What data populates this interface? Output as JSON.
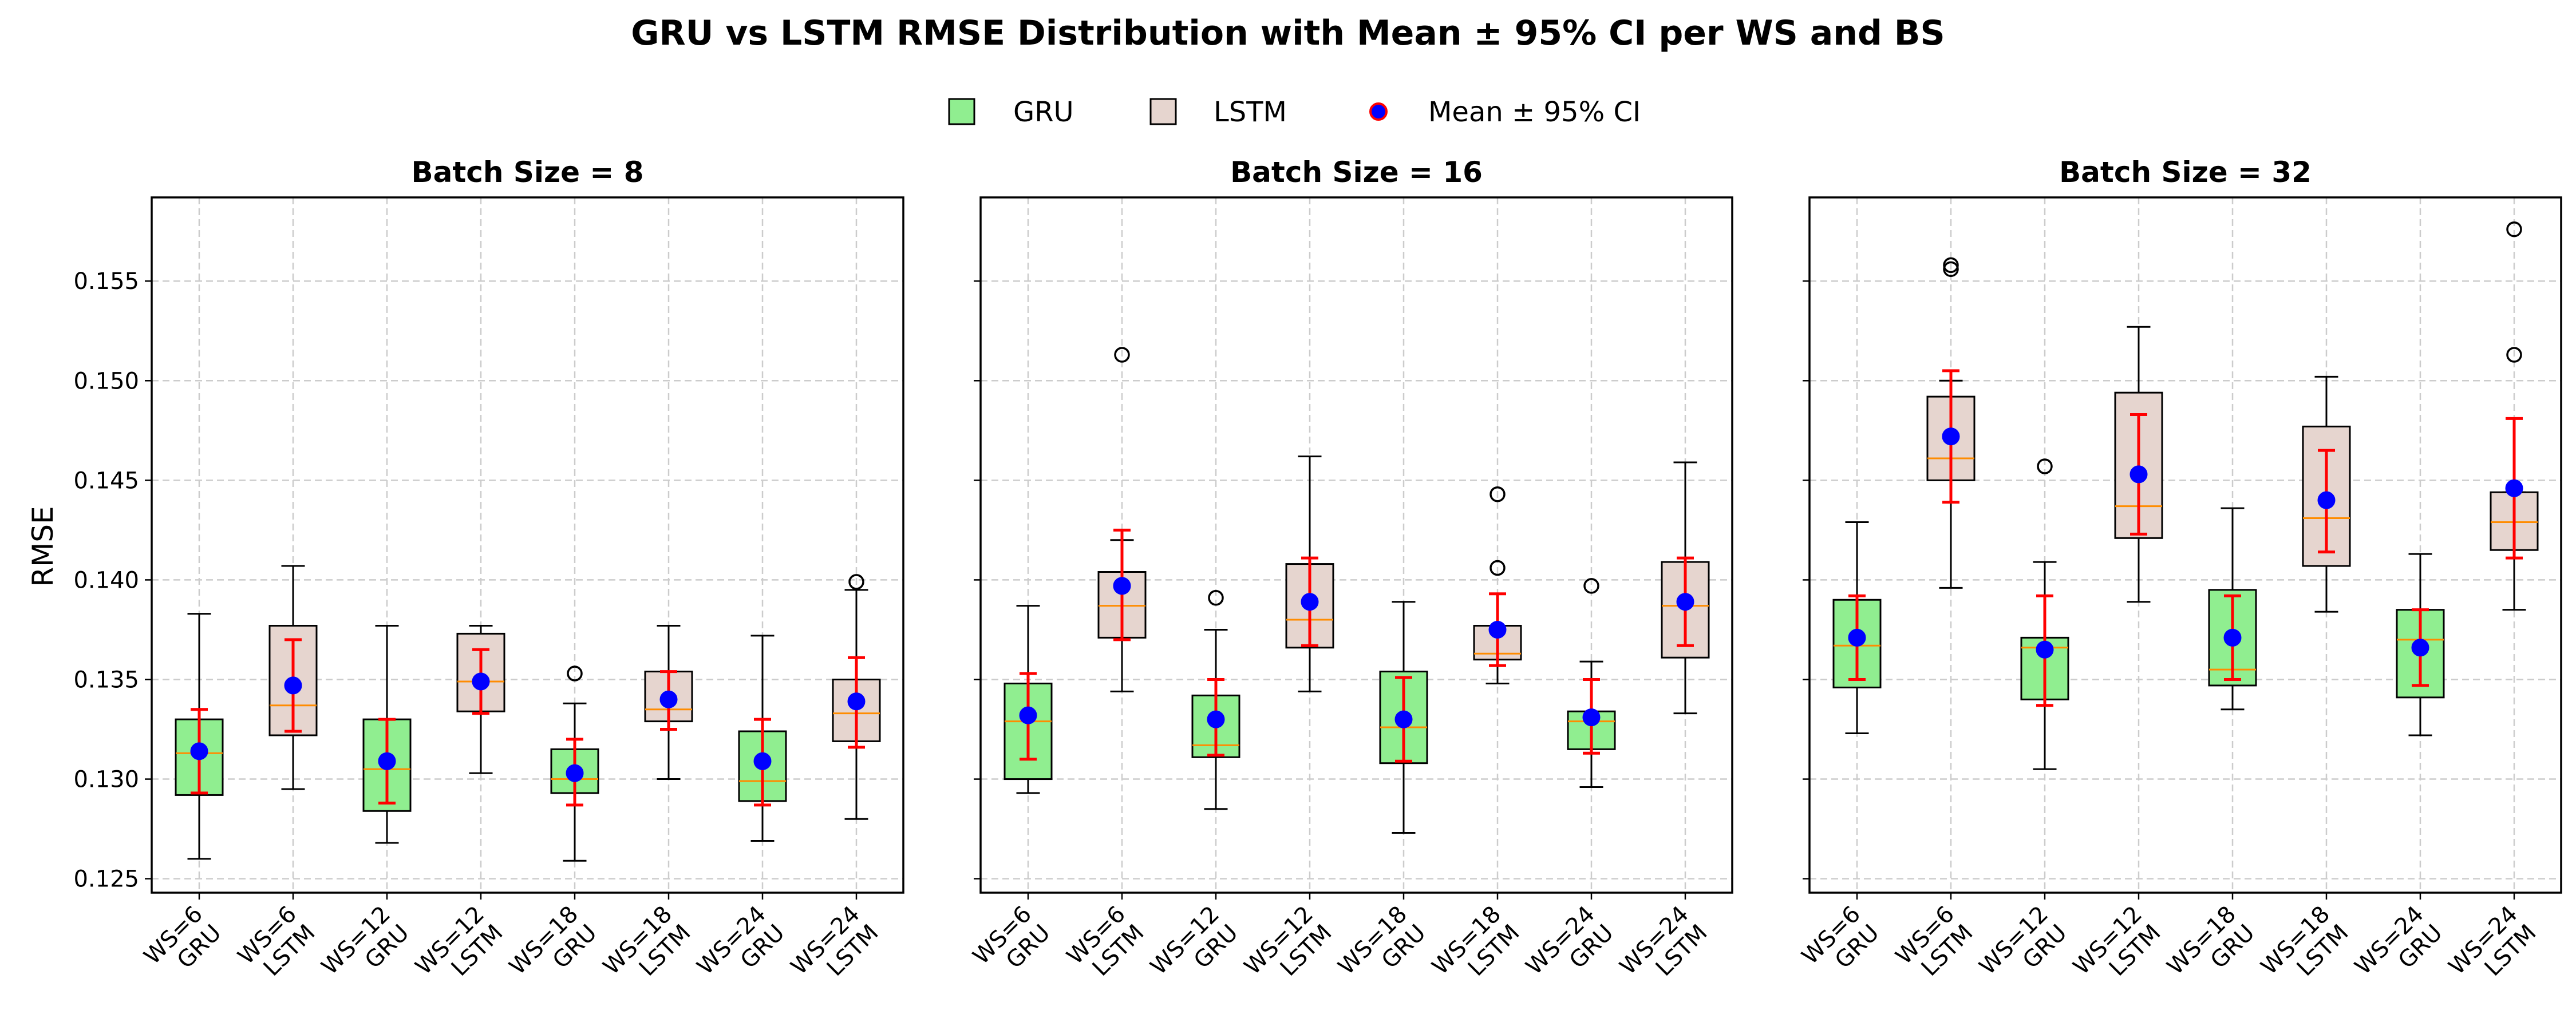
{
  "chart_data": {
    "type": "box",
    "title": "GRU vs LSTM RMSE Distribution with Mean ± 95% CI per WS and BS",
    "ylabel": "RMSE",
    "ylim": [
      0.1243,
      0.1592
    ],
    "yticks": [
      0.125,
      0.13,
      0.135,
      0.14,
      0.145,
      0.15,
      0.155
    ],
    "ytick_labels": [
      "0.125",
      "0.130",
      "0.135",
      "0.140",
      "0.145",
      "0.150",
      "0.155"
    ],
    "grid": true,
    "legend": {
      "placement": "top-center",
      "entries": [
        {
          "label": "GRU",
          "color": "#90EE90"
        },
        {
          "label": "LSTM",
          "color": "#E6D5CF"
        },
        {
          "label": "Mean ± 95% CI",
          "color": "#0000FF",
          "edge": "#FF0000"
        }
      ]
    },
    "colors": {
      "gru": "#90EE90",
      "lstm": "#E6D5CF",
      "median": "#FF8C00",
      "mean": "#0000FF",
      "ci": "#FF0000",
      "grid": "#CCCCCC"
    },
    "categories": [
      [
        "WS=6",
        "GRU"
      ],
      [
        "WS=6",
        "LSTM"
      ],
      [
        "WS=12",
        "GRU"
      ],
      [
        "WS=12",
        "LSTM"
      ],
      [
        "WS=18",
        "GRU"
      ],
      [
        "WS=18",
        "LSTM"
      ],
      [
        "WS=24",
        "GRU"
      ],
      [
        "WS=24",
        "LSTM"
      ]
    ],
    "panels": [
      {
        "title": "Batch Size = 8",
        "boxes": [
          {
            "model": "GRU",
            "ws": 6,
            "wlo": 0.126,
            "q1": 0.1292,
            "median": 0.1313,
            "q3": 0.133,
            "whi": 0.1383,
            "mean": 0.1314,
            "ci": [
              0.1293,
              0.1335
            ],
            "outliers": []
          },
          {
            "model": "LSTM",
            "ws": 6,
            "wlo": 0.1295,
            "q1": 0.1322,
            "median": 0.1337,
            "q3": 0.1377,
            "whi": 0.1407,
            "mean": 0.1347,
            "ci": [
              0.1324,
              0.137
            ],
            "outliers": []
          },
          {
            "model": "GRU",
            "ws": 12,
            "wlo": 0.1268,
            "q1": 0.1284,
            "median": 0.1305,
            "q3": 0.133,
            "whi": 0.1377,
            "mean": 0.1309,
            "ci": [
              0.1288,
              0.133
            ],
            "outliers": []
          },
          {
            "model": "LSTM",
            "ws": 12,
            "wlo": 0.1303,
            "q1": 0.1334,
            "median": 0.1349,
            "q3": 0.1373,
            "whi": 0.1377,
            "mean": 0.1349,
            "ci": [
              0.1333,
              0.1365
            ],
            "outliers": []
          },
          {
            "model": "GRU",
            "ws": 18,
            "wlo": 0.1259,
            "q1": 0.1293,
            "median": 0.13,
            "q3": 0.1315,
            "whi": 0.1338,
            "mean": 0.1303,
            "ci": [
              0.1287,
              0.132
            ],
            "outliers": [
              0.1353
            ]
          },
          {
            "model": "LSTM",
            "ws": 18,
            "wlo": 0.13,
            "q1": 0.1329,
            "median": 0.1335,
            "q3": 0.1354,
            "whi": 0.1377,
            "mean": 0.134,
            "ci": [
              0.1325,
              0.1354
            ],
            "outliers": []
          },
          {
            "model": "GRU",
            "ws": 24,
            "wlo": 0.1269,
            "q1": 0.1289,
            "median": 0.1299,
            "q3": 0.1324,
            "whi": 0.1372,
            "mean": 0.1309,
            "ci": [
              0.1287,
              0.133
            ],
            "outliers": []
          },
          {
            "model": "LSTM",
            "ws": 24,
            "wlo": 0.128,
            "q1": 0.1319,
            "median": 0.1333,
            "q3": 0.135,
            "whi": 0.1395,
            "mean": 0.1339,
            "ci": [
              0.1316,
              0.1361
            ],
            "outliers": [
              0.1399
            ]
          }
        ]
      },
      {
        "title": "Batch Size = 16",
        "boxes": [
          {
            "model": "GRU",
            "ws": 6,
            "wlo": 0.1293,
            "q1": 0.13,
            "median": 0.1329,
            "q3": 0.1348,
            "whi": 0.1387,
            "mean": 0.1332,
            "ci": [
              0.131,
              0.1353
            ],
            "outliers": []
          },
          {
            "model": "LSTM",
            "ws": 6,
            "wlo": 0.1344,
            "q1": 0.1371,
            "median": 0.1387,
            "q3": 0.1404,
            "whi": 0.142,
            "mean": 0.1397,
            "ci": [
              0.137,
              0.1425
            ],
            "outliers": [
              0.1513
            ]
          },
          {
            "model": "GRU",
            "ws": 12,
            "wlo": 0.1285,
            "q1": 0.1311,
            "median": 0.1317,
            "q3": 0.1342,
            "whi": 0.1375,
            "mean": 0.133,
            "ci": [
              0.1312,
              0.135
            ],
            "outliers": [
              0.1391
            ]
          },
          {
            "model": "LSTM",
            "ws": 12,
            "wlo": 0.1344,
            "q1": 0.1366,
            "median": 0.138,
            "q3": 0.1408,
            "whi": 0.1462,
            "mean": 0.1389,
            "ci": [
              0.1367,
              0.1411
            ],
            "outliers": []
          },
          {
            "model": "GRU",
            "ws": 18,
            "wlo": 0.1273,
            "q1": 0.1308,
            "median": 0.1326,
            "q3": 0.1354,
            "whi": 0.1389,
            "mean": 0.133,
            "ci": [
              0.1309,
              0.1351
            ],
            "outliers": []
          },
          {
            "model": "LSTM",
            "ws": 18,
            "wlo": 0.1348,
            "q1": 0.136,
            "median": 0.1363,
            "q3": 0.1377,
            "whi": 0.1377,
            "mean": 0.1375,
            "ci": [
              0.1357,
              0.1393
            ],
            "outliers": [
              0.1406,
              0.1443
            ]
          },
          {
            "model": "GRU",
            "ws": 24,
            "wlo": 0.1296,
            "q1": 0.1315,
            "median": 0.1329,
            "q3": 0.1334,
            "whi": 0.1359,
            "mean": 0.1331,
            "ci": [
              0.1313,
              0.135
            ],
            "outliers": [
              0.1397
            ]
          },
          {
            "model": "LSTM",
            "ws": 24,
            "wlo": 0.1333,
            "q1": 0.1361,
            "median": 0.1387,
            "q3": 0.1409,
            "whi": 0.1459,
            "mean": 0.1389,
            "ci": [
              0.1367,
              0.1411
            ],
            "outliers": []
          }
        ]
      },
      {
        "title": "Batch Size = 32",
        "boxes": [
          {
            "model": "GRU",
            "ws": 6,
            "wlo": 0.1323,
            "q1": 0.1346,
            "median": 0.1367,
            "q3": 0.139,
            "whi": 0.1429,
            "mean": 0.1371,
            "ci": [
              0.135,
              0.1392
            ],
            "outliers": []
          },
          {
            "model": "LSTM",
            "ws": 6,
            "wlo": 0.1396,
            "q1": 0.145,
            "median": 0.1461,
            "q3": 0.1492,
            "whi": 0.15,
            "mean": 0.1472,
            "ci": [
              0.1439,
              0.1505
            ],
            "outliers": [
              0.1556,
              0.1558
            ]
          },
          {
            "model": "GRU",
            "ws": 12,
            "wlo": 0.1305,
            "q1": 0.134,
            "median": 0.1366,
            "q3": 0.1371,
            "whi": 0.1409,
            "mean": 0.1365,
            "ci": [
              0.1337,
              0.1392
            ],
            "outliers": [
              0.1457
            ]
          },
          {
            "model": "LSTM",
            "ws": 12,
            "wlo": 0.1389,
            "q1": 0.1421,
            "median": 0.1437,
            "q3": 0.1494,
            "whi": 0.1527,
            "mean": 0.1453,
            "ci": [
              0.1423,
              0.1483
            ],
            "outliers": []
          },
          {
            "model": "GRU",
            "ws": 18,
            "wlo": 0.1335,
            "q1": 0.1347,
            "median": 0.1355,
            "q3": 0.1395,
            "whi": 0.1436,
            "mean": 0.1371,
            "ci": [
              0.135,
              0.1392
            ],
            "outliers": []
          },
          {
            "model": "LSTM",
            "ws": 18,
            "wlo": 0.1384,
            "q1": 0.1407,
            "median": 0.1431,
            "q3": 0.1477,
            "whi": 0.1502,
            "mean": 0.144,
            "ci": [
              0.1414,
              0.1465
            ],
            "outliers": []
          },
          {
            "model": "GRU",
            "ws": 24,
            "wlo": 0.1322,
            "q1": 0.1341,
            "median": 0.137,
            "q3": 0.1385,
            "whi": 0.1413,
            "mean": 0.1366,
            "ci": [
              0.1347,
              0.1385
            ],
            "outliers": []
          },
          {
            "model": "LSTM",
            "ws": 24,
            "wlo": 0.1385,
            "q1": 0.1415,
            "median": 0.1429,
            "q3": 0.1444,
            "whi": 0.1444,
            "mean": 0.1446,
            "ci": [
              0.1411,
              0.1481
            ],
            "outliers": [
              0.1513,
              0.1576
            ]
          }
        ]
      }
    ]
  }
}
